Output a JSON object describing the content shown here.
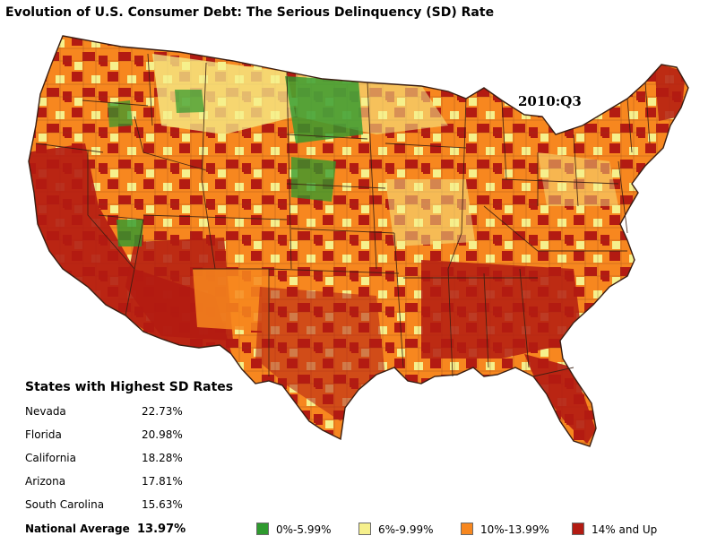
{
  "title": "Evolution of U.S. Consumer Debt: The Serious Delinquency (SD) Rate",
  "period": "2010:Q3",
  "ranking": {
    "heading": "States with Highest SD Rates",
    "states": [
      {
        "name": "Nevada",
        "rate": "22.73%"
      },
      {
        "name": "Florida",
        "rate": "20.98%"
      },
      {
        "name": "California",
        "rate": "18.28%"
      },
      {
        "name": "Arizona",
        "rate": "17.81%"
      },
      {
        "name": "South Carolina",
        "rate": "15.63%"
      }
    ],
    "national": {
      "label": "National Average",
      "rate": "13.97%"
    }
  },
  "legend": [
    {
      "label": "0%-5.99%",
      "color": "#2e9a2e"
    },
    {
      "label": "6%-9.99%",
      "color": "#f6f08c"
    },
    {
      "label": "10%-13.99%",
      "color": "#f7871f"
    },
    {
      "label": "14% and Up",
      "color": "#b31b12"
    }
  ],
  "map_colors": {
    "green": "#2e9a2e",
    "yellow": "#f6f08c",
    "orange": "#f7871f",
    "red": "#b31b12",
    "border": "#4a2a1a"
  }
}
